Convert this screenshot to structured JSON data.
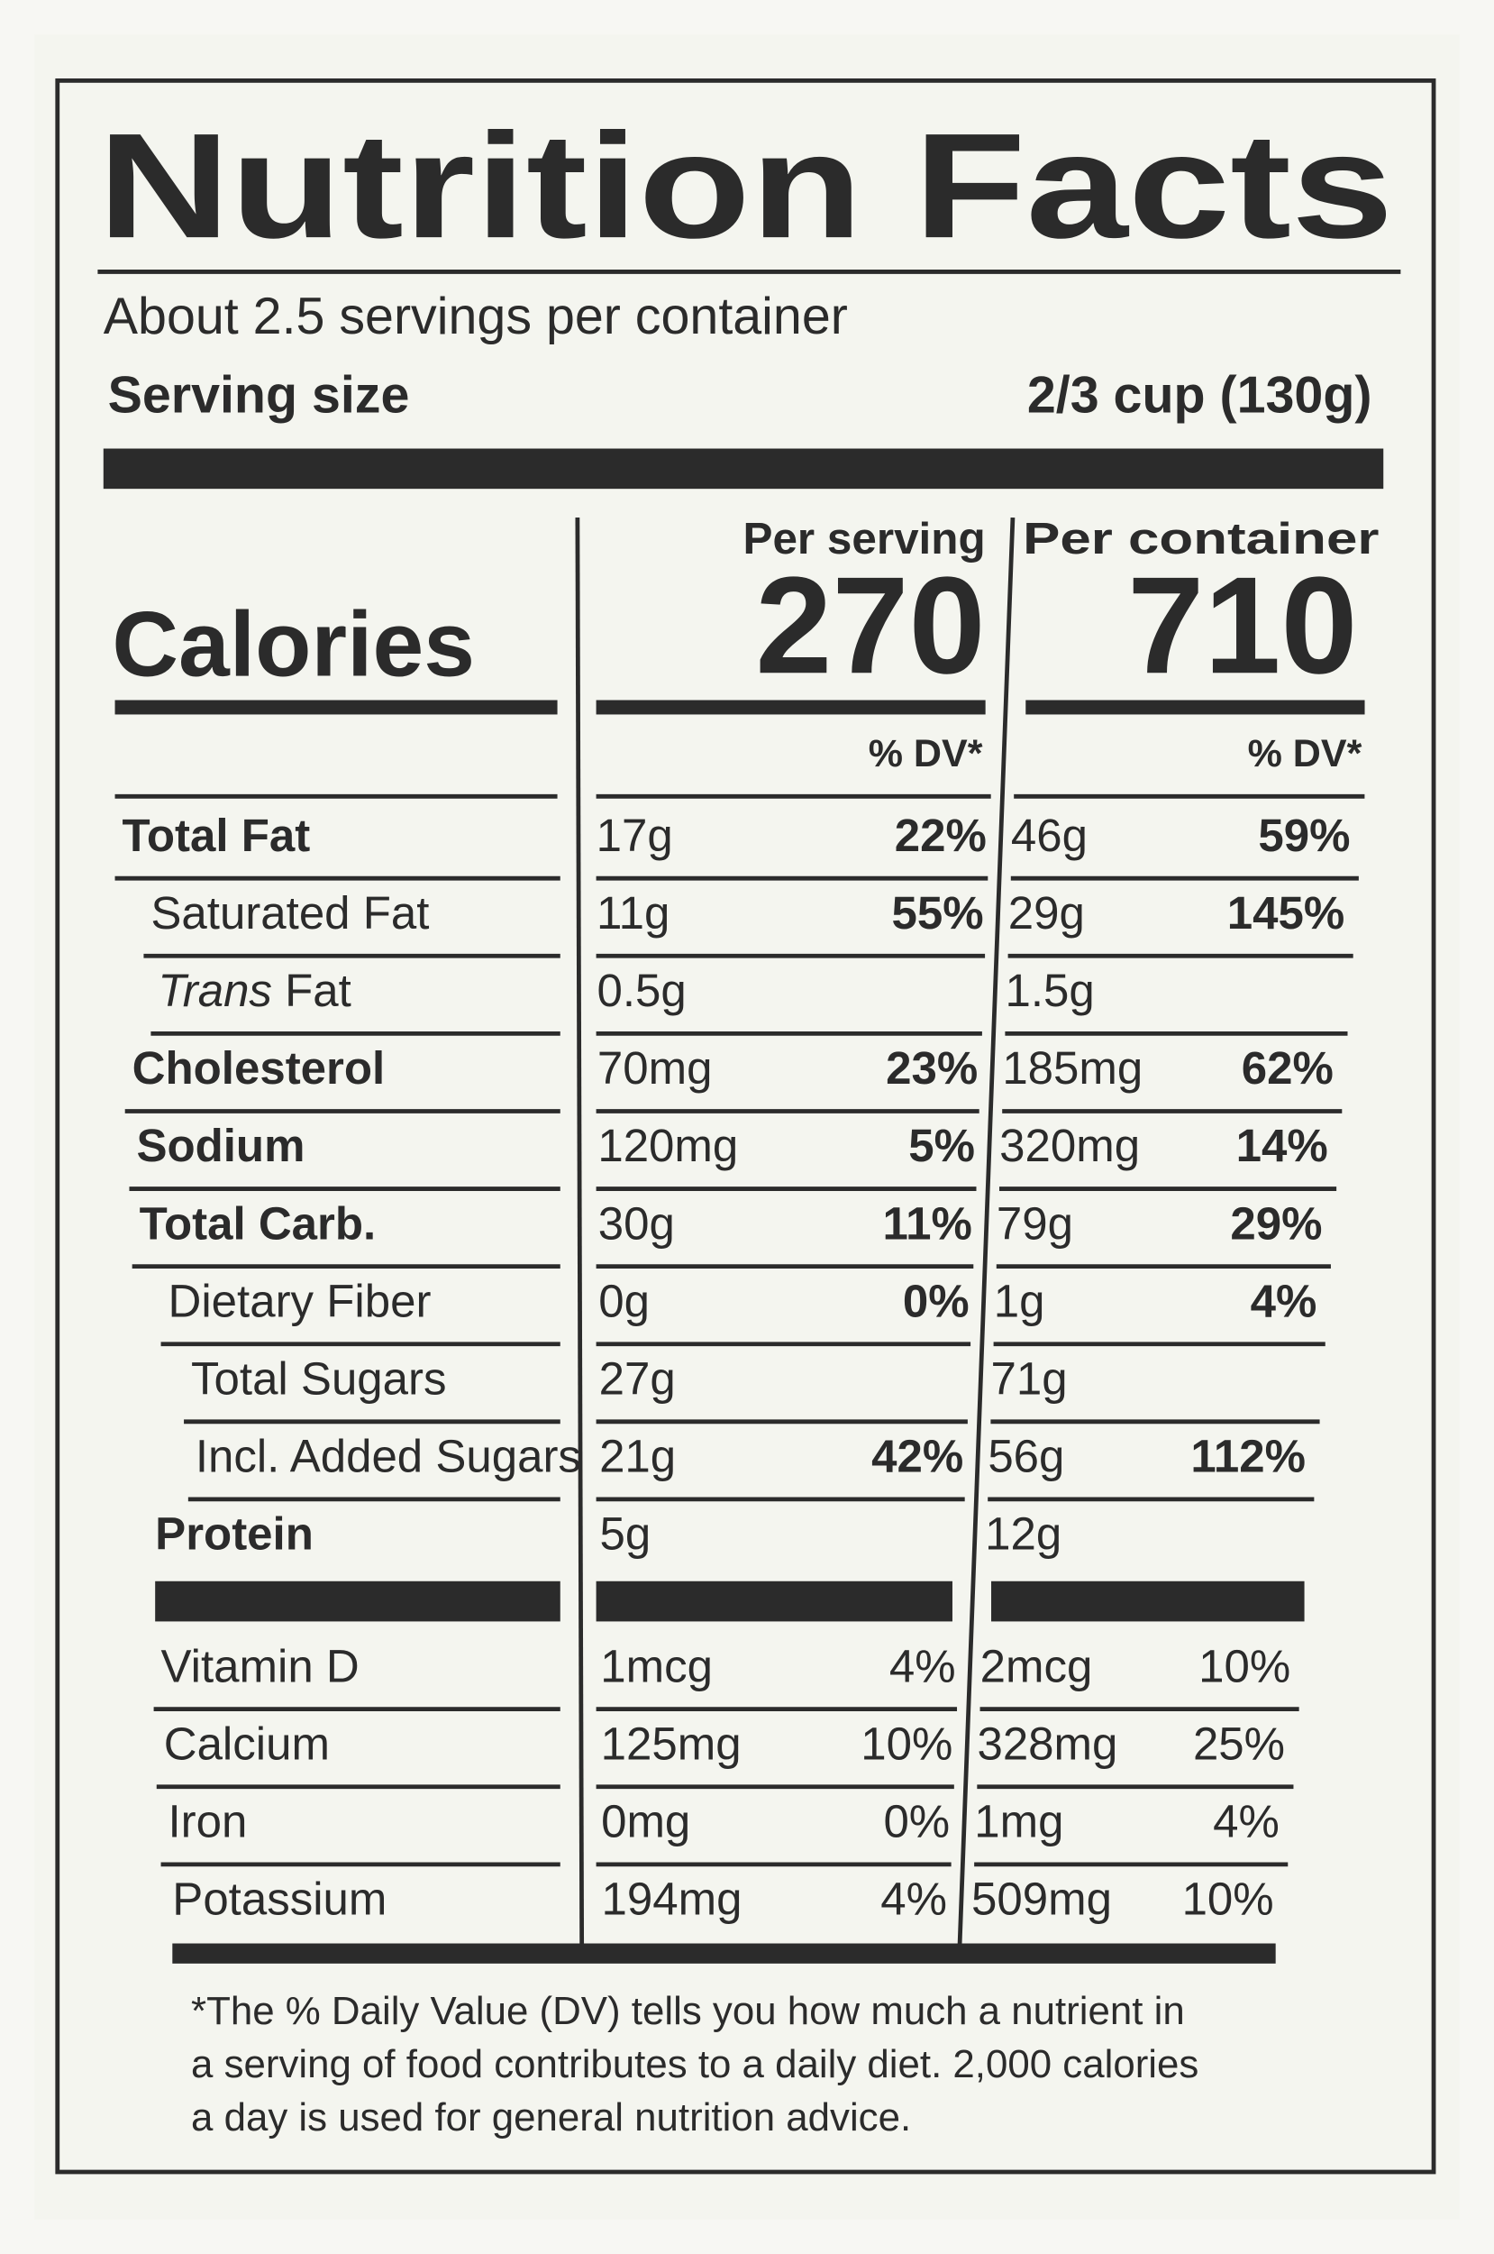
{
  "header": {
    "title": "Nutrition Facts",
    "servings": "About 2.5 servings per container",
    "serving_size_label": "Serving size",
    "serving_size": "2/3 cup (130g)"
  },
  "columns": {
    "per_serving": "Per serving",
    "per_container": "Per container"
  },
  "calories": {
    "label": "Calories",
    "per_serving": "270",
    "per_container": "710"
  },
  "dv_header": {
    "per_serving": "% DV*",
    "per_container": "% DV*"
  },
  "nutrients": [
    {
      "name": "Total Fat",
      "per_serving": {
        "amount": "17g",
        "dv": "22%"
      },
      "per_container": {
        "amount": "46g",
        "dv": "59%"
      }
    },
    {
      "name": "Saturated Fat",
      "per_serving": {
        "amount": "11g",
        "dv": "55%"
      },
      "per_container": {
        "amount": "29g",
        "dv": "145%"
      }
    },
    {
      "name_italic": "Trans",
      "name": "Fat",
      "per_serving": {
        "amount": "0.5g"
      },
      "per_container": {
        "amount": "1.5g"
      }
    },
    {
      "name": "Cholesterol",
      "per_serving": {
        "amount": "70mg",
        "dv": "23%"
      },
      "per_container": {
        "amount": "185mg",
        "dv": "62%"
      }
    },
    {
      "name": "Sodium",
      "per_serving": {
        "amount": "120mg",
        "dv": "5%"
      },
      "per_container": {
        "amount": "320mg",
        "dv": "14%"
      }
    },
    {
      "name": "Total Carb.",
      "per_serving": {
        "amount": "30g",
        "dv": "11%"
      },
      "per_container": {
        "amount": "79g",
        "dv": "29%"
      }
    },
    {
      "name": "Dietary Fiber",
      "per_serving": {
        "amount": "0g",
        "dv": "0%"
      },
      "per_container": {
        "amount": "1g",
        "dv": "4%"
      }
    },
    {
      "name": "Total Sugars",
      "per_serving": {
        "amount": "27g"
      },
      "per_container": {
        "amount": "71g"
      }
    },
    {
      "name": "Incl. Added Sugars",
      "per_serving": {
        "amount": "21g",
        "dv": "42%"
      },
      "per_container": {
        "amount": "56g",
        "dv": "112%"
      }
    },
    {
      "name": "Protein",
      "per_serving": {
        "amount": "5g"
      },
      "per_container": {
        "amount": "12g"
      }
    }
  ],
  "vitamins": [
    {
      "name": "Vitamin D",
      "per_serving": {
        "amount": "1mcg",
        "dv": "4%"
      },
      "per_container": {
        "amount": "2mcg",
        "dv": "10%"
      }
    },
    {
      "name": "Calcium",
      "per_serving": {
        "amount": "125mg",
        "dv": "10%"
      },
      "per_container": {
        "amount": "328mg",
        "dv": "25%"
      }
    },
    {
      "name": "Iron",
      "per_serving": {
        "amount": "0mg",
        "dv": "0%"
      },
      "per_container": {
        "amount": "1mg",
        "dv": "4%"
      }
    },
    {
      "name": "Potassium",
      "per_serving": {
        "amount": "194mg",
        "dv": "4%"
      },
      "per_container": {
        "amount": "509mg",
        "dv": "10%"
      }
    }
  ],
  "footnote": [
    "*The % Daily Value (DV) tells you how much a nutrient in",
    "a serving of food contributes to a daily diet. 2,000 calories",
    "a day is used for general nutrition advice."
  ]
}
